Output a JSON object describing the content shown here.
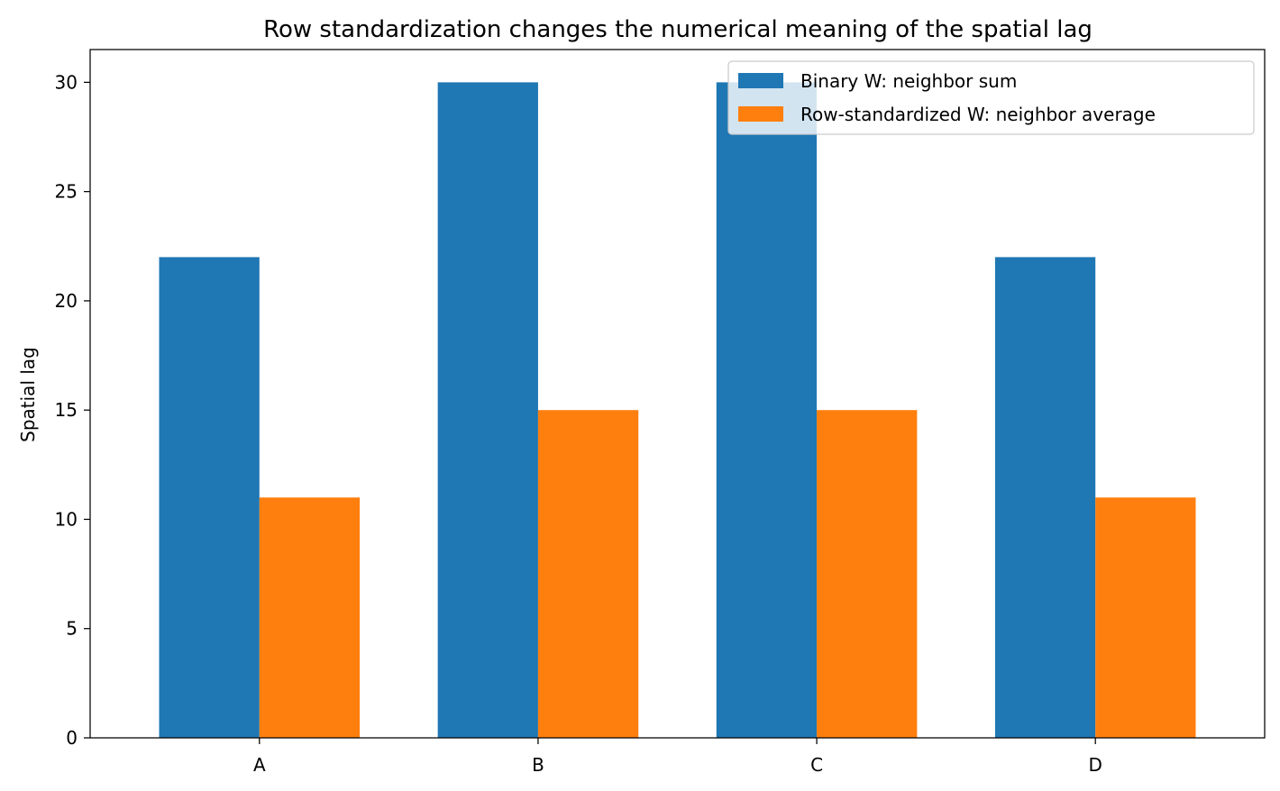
{
  "chart_data": {
    "type": "bar",
    "title": "Row standardization changes the numerical meaning of the spatial lag",
    "xlabel": "",
    "ylabel": "Spatial lag",
    "categories": [
      "A",
      "B",
      "C",
      "D"
    ],
    "series": [
      {
        "name": "Binary W: neighbor sum",
        "values": [
          22,
          30,
          30,
          22
        ],
        "color": "#1f77b4"
      },
      {
        "name": "Row-standardized W: neighbor average",
        "values": [
          11,
          15,
          15,
          11
        ],
        "color": "#ff7f0e"
      }
    ],
    "yticks": [
      0,
      5,
      10,
      15,
      20,
      25,
      30
    ],
    "ylim": [
      0,
      31.5
    ],
    "grid": false,
    "legend_position": "top-right"
  }
}
